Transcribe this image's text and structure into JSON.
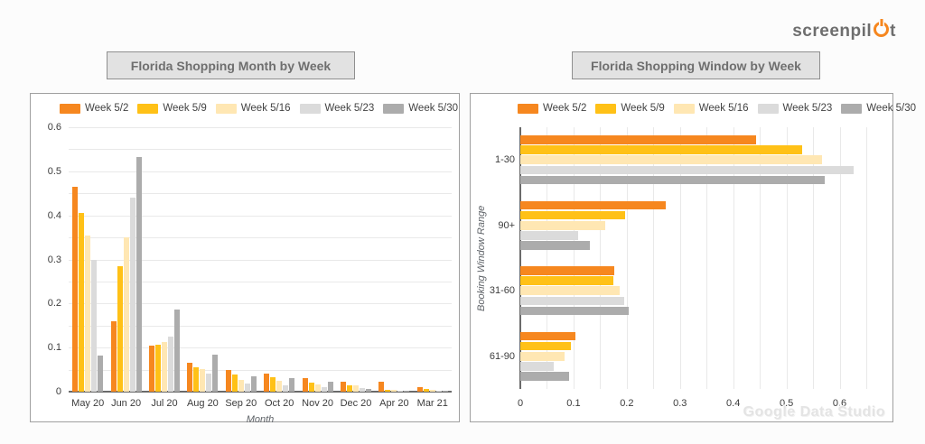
{
  "logo": {
    "prefix": "screenpil",
    "power_symbol": "o",
    "suffix": "t",
    "gray": "#6E6E6E",
    "orange": "#F6871F"
  },
  "watermark": "Google Data Studio",
  "chart_data": [
    {
      "type": "bar",
      "orientation": "vertical",
      "title": "Florida Shopping Month by Week",
      "xlabel": "Month",
      "ylabel": "",
      "ylim": [
        0,
        0.6
      ],
      "yticks": [
        0,
        0.1,
        0.2,
        0.3,
        0.4,
        0.5,
        0.6
      ],
      "grid_step": 0.05,
      "grid": true,
      "legend_position": "top",
      "categories": [
        "May 20",
        "Jun 20",
        "Jul 20",
        "Aug 20",
        "Sep 20",
        "Oct 20",
        "Nov 20",
        "Dec 20",
        "Apr 20",
        "Mar 21"
      ],
      "series": [
        {
          "name": "Week 5/2",
          "color": "#F6871F",
          "values": [
            0.465,
            0.16,
            0.105,
            0.065,
            0.05,
            0.042,
            0.03,
            0.022,
            0.022,
            0.011
          ]
        },
        {
          "name": "Week 5/9",
          "color": "#FFC117",
          "values": [
            0.405,
            0.285,
            0.106,
            0.055,
            0.038,
            0.033,
            0.021,
            0.015,
            0.005,
            0.007
          ]
        },
        {
          "name": "Week 5/16",
          "color": "#FFE7B3",
          "values": [
            0.355,
            0.35,
            0.113,
            0.052,
            0.026,
            0.024,
            0.016,
            0.014,
            0.004,
            0.005
          ]
        },
        {
          "name": "Week 5/23",
          "color": "#DBDBDB",
          "values": [
            0.3,
            0.44,
            0.124,
            0.042,
            0.018,
            0.015,
            0.011,
            0.009,
            0.002,
            0.002
          ]
        },
        {
          "name": "Week 5/30",
          "color": "#ACACAC",
          "values": [
            0.082,
            0.532,
            0.187,
            0.084,
            0.034,
            0.031,
            0.022,
            0.007,
            0.003,
            0.003
          ]
        }
      ]
    },
    {
      "type": "bar",
      "orientation": "horizontal",
      "title": "Florida Shopping Window by Week",
      "xlabel": "",
      "ylabel": "Booking Window Range",
      "xlim": [
        0,
        0.65
      ],
      "xticks": [
        0,
        0.1,
        0.2,
        0.3,
        0.4,
        0.5,
        0.6
      ],
      "grid_step": 0.05,
      "grid": true,
      "legend_position": "top",
      "categories": [
        "1-30",
        "90+",
        "31-60",
        "61-90"
      ],
      "series": [
        {
          "name": "Week 5/2",
          "color": "#F6871F",
          "values": [
            0.443,
            0.274,
            0.176,
            0.104
          ]
        },
        {
          "name": "Week 5/9",
          "color": "#FFC117",
          "values": [
            0.529,
            0.197,
            0.175,
            0.095
          ]
        },
        {
          "name": "Week 5/16",
          "color": "#FFE7B3",
          "values": [
            0.566,
            0.16,
            0.186,
            0.083
          ]
        },
        {
          "name": "Week 5/23",
          "color": "#DBDBDB",
          "values": [
            0.627,
            0.108,
            0.196,
            0.063
          ]
        },
        {
          "name": "Week 5/30",
          "color": "#ACACAC",
          "values": [
            0.572,
            0.13,
            0.203,
            0.092
          ]
        }
      ]
    }
  ]
}
